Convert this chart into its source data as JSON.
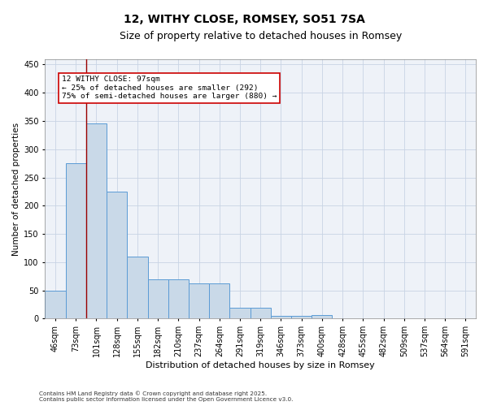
{
  "title": "12, WITHY CLOSE, ROMSEY, SO51 7SA",
  "subtitle": "Size of property relative to detached houses in Romsey",
  "xlabel": "Distribution of detached houses by size in Romsey",
  "ylabel": "Number of detached properties",
  "categories": [
    "46sqm",
    "73sqm",
    "101sqm",
    "128sqm",
    "155sqm",
    "182sqm",
    "210sqm",
    "237sqm",
    "264sqm",
    "291sqm",
    "319sqm",
    "346sqm",
    "373sqm",
    "400sqm",
    "428sqm",
    "455sqm",
    "482sqm",
    "509sqm",
    "537sqm",
    "564sqm",
    "591sqm"
  ],
  "values": [
    50,
    275,
    345,
    225,
    110,
    70,
    70,
    62,
    62,
    20,
    20,
    5,
    5,
    6,
    0,
    1,
    0,
    0,
    0,
    0,
    1
  ],
  "bar_color": "#c9d9e8",
  "bar_edge_color": "#5b9bd5",
  "grid_color": "#c8d4e4",
  "bg_color": "#eef2f8",
  "vline_x_idx": 2,
  "vline_color": "#990000",
  "annotation_line1": "12 WITHY CLOSE: 97sqm",
  "annotation_line2": "← 25% of detached houses are smaller (292)",
  "annotation_line3": "75% of semi-detached houses are larger (880) →",
  "ylim": [
    0,
    460
  ],
  "yticks": [
    0,
    50,
    100,
    150,
    200,
    250,
    300,
    350,
    400,
    450
  ],
  "footer": "Contains HM Land Registry data © Crown copyright and database right 2025.\nContains public sector information licensed under the Open Government Licence v3.0."
}
